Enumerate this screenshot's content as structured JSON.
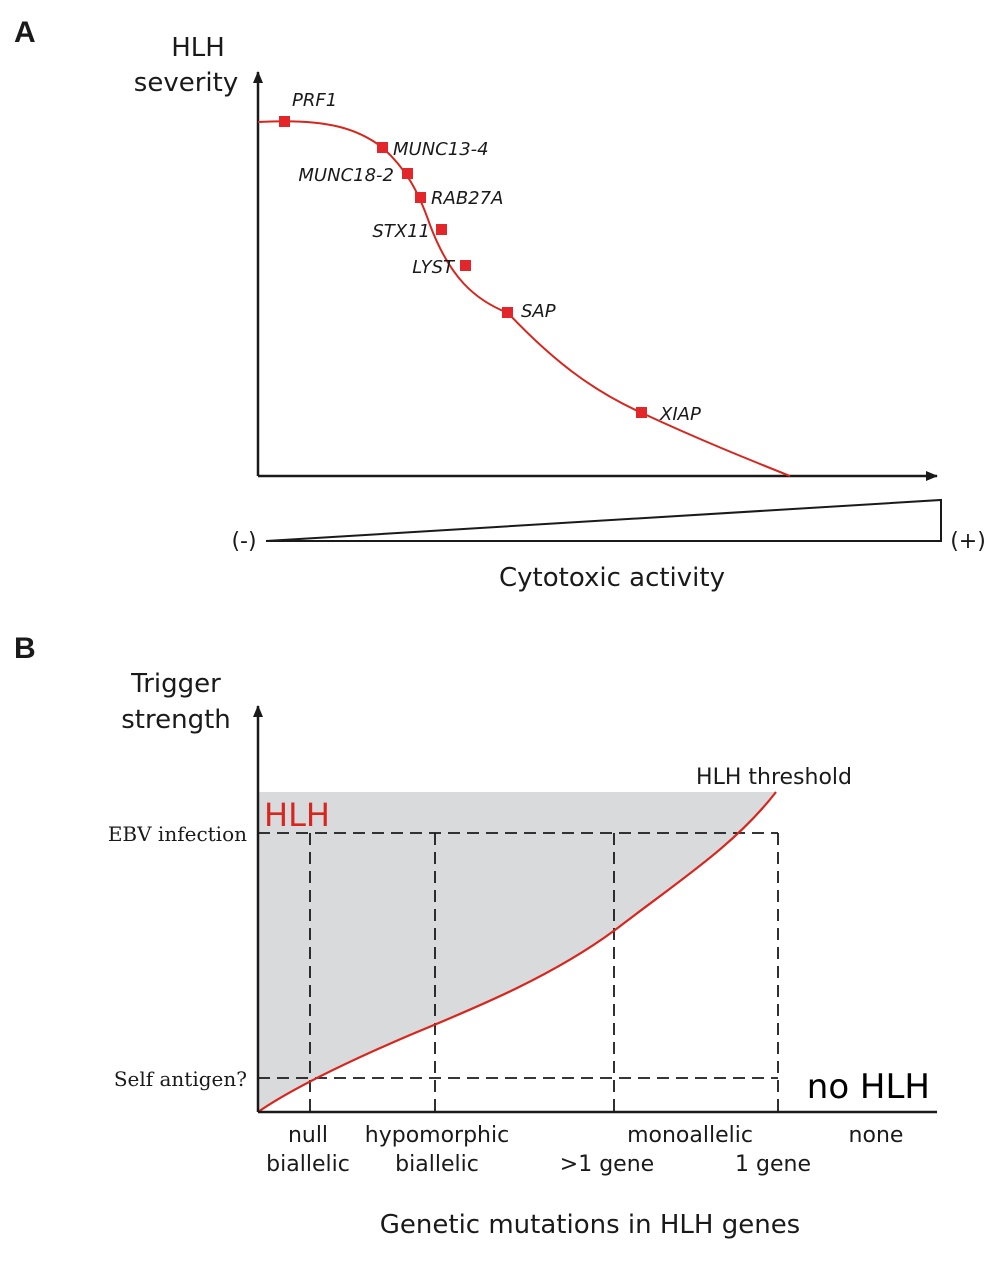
{
  "colors": {
    "curve": "#d7261e",
    "marker": "#e3262a",
    "region": "#d9dadc",
    "axis": "#1a1a1a"
  },
  "panel_a": {
    "letter": "A",
    "y_title_line1": "HLH",
    "y_title_line2": "severity",
    "x_title": "Cytotoxic activity",
    "scale_minus": "(-)",
    "scale_plus": "(+)",
    "genes": [
      {
        "name": "PRF1"
      },
      {
        "name": "MUNC13-4"
      },
      {
        "name": "MUNC18-2"
      },
      {
        "name": "RAB27A"
      },
      {
        "name": "STX11"
      },
      {
        "name": "LYST"
      },
      {
        "name": "SAP"
      },
      {
        "name": "XIAP"
      }
    ]
  },
  "panel_b": {
    "letter": "B",
    "y_title_line1": "Trigger",
    "y_title_line2": "strength",
    "y_levels": [
      "EBV infection",
      "Self antigen?"
    ],
    "region_label": "HLH",
    "threshold_label": "HLH threshold",
    "below_label": "no HLH",
    "x_categories": [
      {
        "line1": "null",
        "line2": "biallelic"
      },
      {
        "line1": "hypomorphic",
        "line2": "biallelic"
      },
      {
        "line1": "monoallelic",
        "line2": ""
      },
      {
        "line1": "",
        "line2": ">1 gene"
      },
      {
        "line1": "",
        "line2": "1 gene"
      },
      {
        "line1": "none",
        "line2": ""
      }
    ],
    "x_title": "Genetic mutations in HLH genes"
  }
}
